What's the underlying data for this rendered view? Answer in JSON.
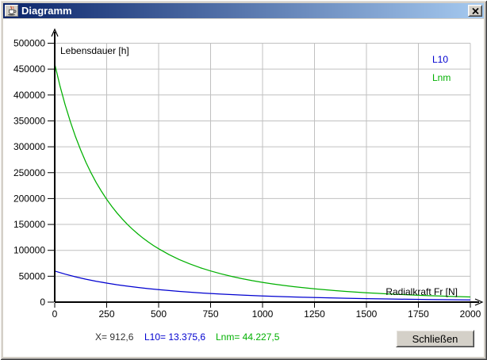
{
  "window": {
    "title": "Diagramm"
  },
  "icons": {
    "title": "java-coffee-cup-icon",
    "close": "close-x-icon"
  },
  "colors": {
    "titlebar_gradient_start": "#0A246A",
    "titlebar_gradient_end": "#A6CAF0",
    "chrome": "#D4D0C8",
    "grid": "#C0C0C0",
    "axis": "#000000",
    "l10": "#0000D0",
    "lnm": "#00B000",
    "status_x": "#333333"
  },
  "chart_data": {
    "type": "line",
    "title": "",
    "xlabel": "Radialkraft Fr [N]",
    "ylabel": "Lebensdauer [h]",
    "xlim": [
      0,
      2000
    ],
    "ylim": [
      0,
      500000
    ],
    "grid": true,
    "legend_position": "top-right",
    "x_tick_values": [
      0,
      250,
      500,
      750,
      1000,
      1250,
      1500,
      1750,
      2000
    ],
    "x_tick_labels": [
      "0",
      "250",
      "500",
      "750",
      "1000",
      "1250",
      "1500",
      "1750",
      "2000"
    ],
    "y_tick_values": [
      0,
      50000,
      100000,
      150000,
      200000,
      250000,
      300000,
      350000,
      400000,
      450000,
      500000
    ],
    "y_tick_labels": [
      "0",
      "50000",
      "100000",
      "150000",
      "200000",
      "250000",
      "300000",
      "350000",
      "400000",
      "450000",
      "500000"
    ],
    "series": [
      {
        "name": "L10",
        "color": "#0000D0",
        "points": [
          [
            0,
            60000
          ],
          [
            50,
            54000
          ],
          [
            100,
            48800
          ],
          [
            150,
            44250
          ],
          [
            200,
            40250
          ],
          [
            250,
            36700
          ],
          [
            300,
            33570
          ],
          [
            350,
            30780
          ],
          [
            400,
            28300
          ],
          [
            450,
            26070
          ],
          [
            500,
            24070
          ],
          [
            600,
            20640
          ],
          [
            700,
            17840
          ],
          [
            800,
            15520
          ],
          [
            900,
            13590
          ],
          [
            1000,
            11960
          ],
          [
            1100,
            10590
          ],
          [
            1200,
            9410
          ],
          [
            1300,
            8410
          ],
          [
            1400,
            7540
          ],
          [
            1500,
            6790
          ],
          [
            1600,
            6130
          ],
          [
            1700,
            5560
          ],
          [
            1800,
            5050
          ],
          [
            1900,
            4610
          ],
          [
            2000,
            4210
          ]
        ]
      },
      {
        "name": "Lnm",
        "color": "#00B000",
        "points": [
          [
            0,
            460000
          ],
          [
            25,
            418200
          ],
          [
            50,
            381200
          ],
          [
            75,
            348500
          ],
          [
            100,
            319400
          ],
          [
            125,
            293400
          ],
          [
            150,
            270200
          ],
          [
            175,
            249400
          ],
          [
            200,
            230700
          ],
          [
            225,
            213800
          ],
          [
            250,
            198500
          ],
          [
            275,
            184600
          ],
          [
            300,
            172000
          ],
          [
            325,
            160500
          ],
          [
            350,
            150000
          ],
          [
            375,
            140450
          ],
          [
            400,
            131700
          ],
          [
            425,
            123600
          ],
          [
            450,
            116200
          ],
          [
            475,
            109300
          ],
          [
            500,
            103000
          ],
          [
            550,
            91760
          ],
          [
            600,
            82100
          ],
          [
            650,
            73750
          ],
          [
            700,
            66490
          ],
          [
            750,
            60150
          ],
          [
            800,
            54600
          ],
          [
            850,
            49700
          ],
          [
            900,
            45380
          ],
          [
            950,
            41540
          ],
          [
            1000,
            38130
          ],
          [
            1050,
            35080
          ],
          [
            1100,
            32340
          ],
          [
            1150,
            29880
          ],
          [
            1200,
            27670
          ],
          [
            1250,
            25670
          ],
          [
            1300,
            23850
          ],
          [
            1350,
            22210
          ],
          [
            1400,
            20710
          ],
          [
            1450,
            19340
          ],
          [
            1500,
            18100
          ],
          [
            1550,
            16950
          ],
          [
            1600,
            15900
          ],
          [
            1650,
            14940
          ],
          [
            1700,
            14050
          ],
          [
            1750,
            13230
          ],
          [
            1800,
            12480
          ],
          [
            1850,
            11780
          ],
          [
            1900,
            11130
          ],
          [
            1950,
            10530
          ],
          [
            2000,
            9970
          ]
        ]
      }
    ]
  },
  "status": {
    "items": [
      {
        "text": "X= 912,6",
        "color": "#333333"
      },
      {
        "text": "L10= 13.375,6",
        "color": "#0000D0"
      },
      {
        "text": "Lnm= 44.227,5",
        "color": "#00B000"
      }
    ]
  },
  "footer": {
    "close_button": "Schließen"
  }
}
